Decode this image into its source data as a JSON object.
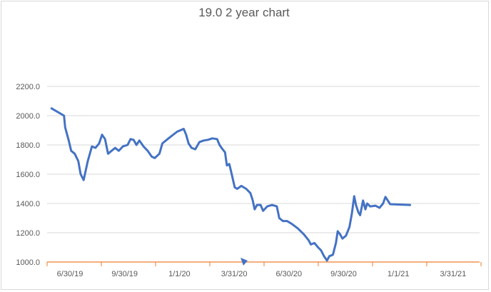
{
  "chart_data": {
    "type": "line",
    "title": "19.0 2 year chart",
    "xlabel": "",
    "ylabel": "",
    "x_ticks": [
      "6/30/19",
      "9/30/19",
      "1/1/20",
      "3/31/20",
      "6/30/20",
      "9/30/20",
      "1/1/21",
      "3/31/21"
    ],
    "y_ticks": [
      "1000.0",
      "1200.0",
      "1400.0",
      "1600.0",
      "1800.0",
      "2000.0",
      "2200.0"
    ],
    "ylim": [
      1000,
      2200
    ],
    "grid": "horizontal",
    "legend": "none",
    "series": [
      {
        "color": "#4472c4",
        "points": [
          [
            "2019-05-30",
            2050
          ],
          [
            "2019-06-20",
            2000
          ],
          [
            "2019-06-22",
            1920
          ],
          [
            "2019-06-28",
            1830
          ],
          [
            "2019-07-02",
            1760
          ],
          [
            "2019-07-08",
            1740
          ],
          [
            "2019-07-14",
            1690
          ],
          [
            "2019-07-18",
            1600
          ],
          [
            "2019-07-23",
            1560
          ],
          [
            "2019-07-30",
            1690
          ],
          [
            "2019-08-06",
            1790
          ],
          [
            "2019-08-12",
            1780
          ],
          [
            "2019-08-18",
            1810
          ],
          [
            "2019-08-23",
            1870
          ],
          [
            "2019-08-28",
            1840
          ],
          [
            "2019-09-02",
            1740
          ],
          [
            "2019-09-08",
            1760
          ],
          [
            "2019-09-14",
            1780
          ],
          [
            "2019-09-20",
            1760
          ],
          [
            "2019-09-27",
            1790
          ],
          [
            "2019-10-05",
            1800
          ],
          [
            "2019-10-10",
            1840
          ],
          [
            "2019-10-15",
            1835
          ],
          [
            "2019-10-20",
            1800
          ],
          [
            "2019-10-25",
            1830
          ],
          [
            "2019-11-01",
            1790
          ],
          [
            "2019-11-08",
            1760
          ],
          [
            "2019-11-15",
            1720
          ],
          [
            "2019-11-20",
            1710
          ],
          [
            "2019-11-28",
            1740
          ],
          [
            "2019-12-03",
            1810
          ],
          [
            "2019-12-15",
            1850
          ],
          [
            "2019-12-28",
            1890
          ],
          [
            "2020-01-08",
            1910
          ],
          [
            "2020-01-12",
            1870
          ],
          [
            "2020-01-16",
            1810
          ],
          [
            "2020-01-21",
            1780
          ],
          [
            "2020-01-27",
            1770
          ],
          [
            "2020-02-03",
            1820
          ],
          [
            "2020-02-10",
            1830
          ],
          [
            "2020-02-17",
            1835
          ],
          [
            "2020-02-24",
            1845
          ],
          [
            "2020-03-03",
            1840
          ],
          [
            "2020-03-07",
            1800
          ],
          [
            "2020-03-12",
            1770
          ],
          [
            "2020-03-16",
            1750
          ],
          [
            "2020-03-19",
            1660
          ],
          [
            "2020-03-23",
            1670
          ],
          [
            "2020-03-27",
            1600
          ],
          [
            "2020-04-01",
            1510
          ],
          [
            "2020-04-05",
            1500
          ],
          [
            "2020-04-12",
            1520
          ],
          [
            "2020-04-20",
            1500
          ],
          [
            "2020-04-27",
            1470
          ],
          [
            "2020-05-01",
            1420
          ],
          [
            "2020-05-04",
            1360
          ],
          [
            "2020-05-08",
            1390
          ],
          [
            "2020-05-14",
            1390
          ],
          [
            "2020-05-18",
            1350
          ],
          [
            "2020-05-25",
            1380
          ],
          [
            "2020-06-02",
            1390
          ],
          [
            "2020-06-10",
            1380
          ],
          [
            "2020-06-14",
            1300
          ],
          [
            "2020-06-20",
            1280
          ],
          [
            "2020-06-27",
            1280
          ],
          [
            "2020-07-05",
            1260
          ],
          [
            "2020-07-15",
            1230
          ],
          [
            "2020-07-25",
            1190
          ],
          [
            "2020-08-02",
            1150
          ],
          [
            "2020-08-06",
            1120
          ],
          [
            "2020-08-12",
            1130
          ],
          [
            "2020-08-18",
            1100
          ],
          [
            "2020-08-23",
            1080
          ],
          [
            "2020-08-28",
            1040
          ],
          [
            "2020-09-02",
            1010
          ],
          [
            "2020-09-06",
            1040
          ],
          [
            "2020-09-12",
            1050
          ],
          [
            "2020-09-17",
            1130
          ],
          [
            "2020-09-20",
            1210
          ],
          [
            "2020-09-24",
            1190
          ],
          [
            "2020-09-28",
            1160
          ],
          [
            "2020-10-04",
            1180
          ],
          [
            "2020-10-10",
            1240
          ],
          [
            "2020-10-14",
            1330
          ],
          [
            "2020-10-18",
            1450
          ],
          [
            "2020-10-21",
            1390
          ],
          [
            "2020-10-25",
            1340
          ],
          [
            "2020-10-28",
            1320
          ],
          [
            "2020-11-02",
            1420
          ],
          [
            "2020-11-06",
            1360
          ],
          [
            "2020-11-09",
            1400
          ],
          [
            "2020-11-14",
            1380
          ],
          [
            "2020-11-23",
            1385
          ],
          [
            "2020-11-30",
            1370
          ],
          [
            "2020-12-06",
            1400
          ],
          [
            "2020-12-10",
            1445
          ],
          [
            "2020-12-14",
            1420
          ],
          [
            "2020-12-18",
            1395
          ],
          [
            "2021-01-20",
            1390
          ]
        ]
      }
    ]
  }
}
